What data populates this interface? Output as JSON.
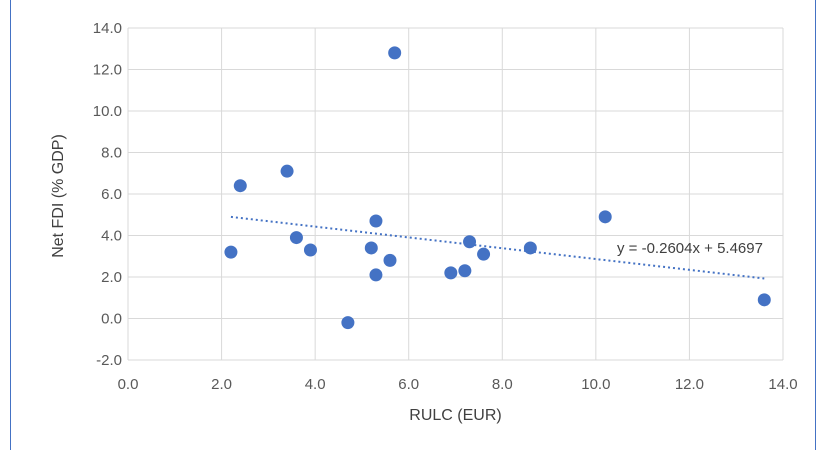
{
  "chart_data": {
    "type": "scatter",
    "xlabel": "RULC (EUR)",
    "ylabel": "Net FDI (% GDP)",
    "xlim": [
      0,
      14
    ],
    "ylim": [
      -2,
      14
    ],
    "x_ticks": [
      "0.0",
      "2.0",
      "4.0",
      "6.0",
      "8.0",
      "10.0",
      "12.0",
      "14.0"
    ],
    "y_ticks": [
      "-2.0",
      "0.0",
      "2.0",
      "4.0",
      "6.0",
      "8.0",
      "10.0",
      "12.0",
      "14.0"
    ],
    "grid": "vertical and horizontal",
    "marker_color": "#4472c4",
    "points": [
      {
        "x": 2.2,
        "y": 3.2
      },
      {
        "x": 2.4,
        "y": 6.4
      },
      {
        "x": 3.4,
        "y": 7.1
      },
      {
        "x": 3.6,
        "y": 3.9
      },
      {
        "x": 3.9,
        "y": 3.3
      },
      {
        "x": 4.7,
        "y": -0.2
      },
      {
        "x": 5.3,
        "y": 4.7
      },
      {
        "x": 5.2,
        "y": 3.4
      },
      {
        "x": 5.3,
        "y": 2.1
      },
      {
        "x": 5.6,
        "y": 2.8
      },
      {
        "x": 5.7,
        "y": 12.8
      },
      {
        "x": 6.9,
        "y": 2.2
      },
      {
        "x": 7.2,
        "y": 2.3
      },
      {
        "x": 7.3,
        "y": 3.7
      },
      {
        "x": 7.6,
        "y": 3.1
      },
      {
        "x": 8.6,
        "y": 3.4
      },
      {
        "x": 10.2,
        "y": 4.9
      },
      {
        "x": 13.6,
        "y": 0.9
      }
    ],
    "trendline": {
      "type": "linear",
      "slope": -0.2604,
      "intercept": 5.4697,
      "x_range": [
        2.2,
        13.6
      ],
      "style": "dotted",
      "label": "y = -0.2604x + 5.4697"
    }
  }
}
